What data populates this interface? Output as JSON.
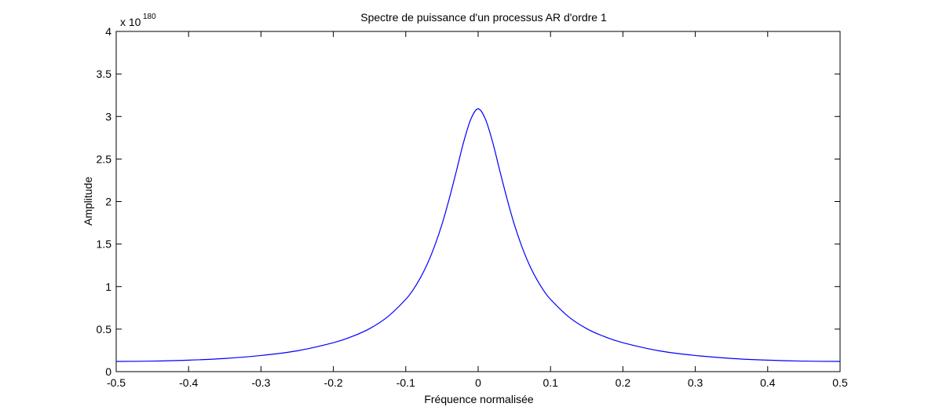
{
  "chart_data": {
    "type": "line",
    "title": "Spectre de puissance d'un processus AR d'ordre 1",
    "xlabel": "Fréquence normalisée",
    "ylabel": "Amplitude",
    "y_scale_prefix": "x 10",
    "y_scale_exponent": "180",
    "xlim": [
      -0.5,
      0.5
    ],
    "ylim": [
      0,
      4
    ],
    "x_ticks": [
      -0.5,
      -0.4,
      -0.3,
      -0.2,
      -0.1,
      0,
      0.1,
      0.2,
      0.3,
      0.4,
      0.5
    ],
    "x_tick_labels": [
      "-0.5",
      "-0.4",
      "-0.3",
      "-0.2",
      "-0.1",
      "0",
      "0.1",
      "0.2",
      "0.3",
      "0.4",
      "0.5"
    ],
    "y_ticks": [
      0,
      0.5,
      1,
      1.5,
      2,
      2.5,
      3,
      3.5,
      4
    ],
    "y_tick_labels": [
      "0",
      "0.5",
      "1",
      "1.5",
      "2",
      "2.5",
      "3",
      "3.5",
      "4"
    ],
    "grid": false,
    "series": [
      {
        "color": "#0000ff",
        "x": [
          -0.5,
          -0.45,
          -0.4,
          -0.35,
          -0.3,
          -0.25,
          -0.2,
          -0.175,
          -0.15,
          -0.125,
          -0.1,
          -0.09,
          -0.08,
          -0.07,
          -0.06,
          -0.05,
          -0.04,
          -0.03,
          -0.02,
          -0.01,
          0,
          0.01,
          0.02,
          0.03,
          0.04,
          0.05,
          0.06,
          0.07,
          0.08,
          0.09,
          0.1,
          0.125,
          0.15,
          0.175,
          0.2,
          0.25,
          0.3,
          0.35,
          0.4,
          0.45,
          0.5
        ],
        "y": [
          0.12,
          0.124,
          0.135,
          0.155,
          0.19,
          0.245,
          0.34,
          0.41,
          0.505,
          0.645,
          0.85,
          0.96,
          1.1,
          1.27,
          1.48,
          1.73,
          2.03,
          2.36,
          2.7,
          2.97,
          3.09,
          2.97,
          2.7,
          2.36,
          2.03,
          1.73,
          1.48,
          1.27,
          1.1,
          0.96,
          0.85,
          0.645,
          0.505,
          0.41,
          0.34,
          0.245,
          0.19,
          0.155,
          0.135,
          0.124,
          0.12
        ]
      }
    ]
  }
}
